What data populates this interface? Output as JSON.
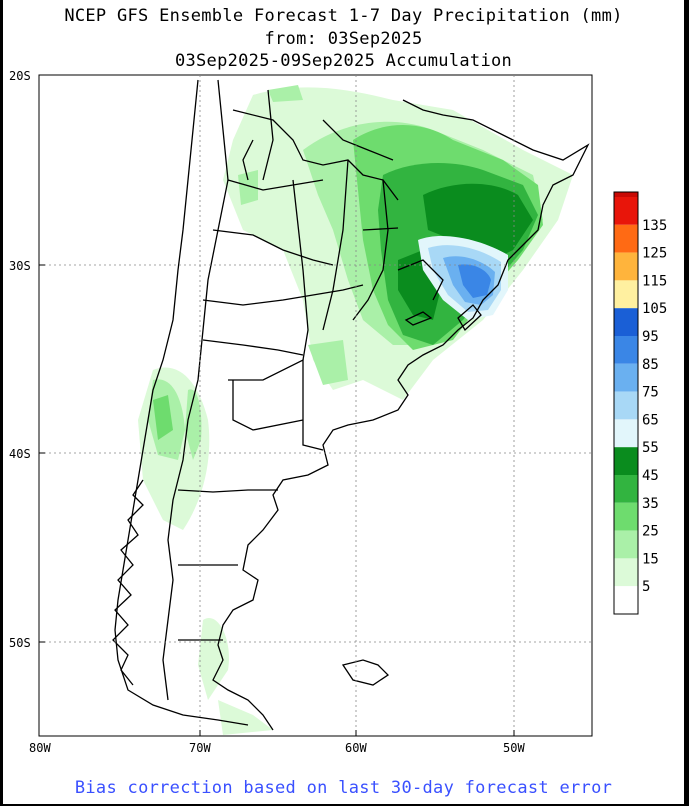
{
  "title": {
    "line1": "NCEP GFS Ensemble Forecast 1-7 Day Precipitation (mm)",
    "line2": "from: 03Sep2025",
    "line3": "03Sep2025-09Sep2025 Accumulation"
  },
  "footer": "Bias correction based on last 30-day forecast error",
  "axes": {
    "lat_labels": [
      "20S",
      "30S",
      "40S",
      "50S"
    ],
    "lon_labels": [
      "80W",
      "70W",
      "60W",
      "50W"
    ]
  },
  "legend": {
    "levels": [
      {
        "label": "135",
        "color": "#e8150a"
      },
      {
        "label": "125",
        "color": "#ff6a14"
      },
      {
        "label": "115",
        "color": "#ffb43c"
      },
      {
        "label": "105",
        "color": "#fff0a0"
      },
      {
        "label": "95",
        "color": "#1a5fd6"
      },
      {
        "label": "85",
        "color": "#3a86e6"
      },
      {
        "label": "75",
        "color": "#6ab0f0"
      },
      {
        "label": "65",
        "color": "#a8d8f6"
      },
      {
        "label": "55",
        "color": "#e2f6fb"
      },
      {
        "label": "45",
        "color": "#0a8c1e"
      },
      {
        "label": "35",
        "color": "#32b440"
      },
      {
        "label": "25",
        "color": "#6edc6e"
      },
      {
        "label": "15",
        "color": "#aaf0a8"
      },
      {
        "label": "5",
        "color": "#dcfad8"
      }
    ],
    "top_color": "#c80a05"
  },
  "colors": {
    "land_boundary": "#000000",
    "grid": "#888888"
  }
}
